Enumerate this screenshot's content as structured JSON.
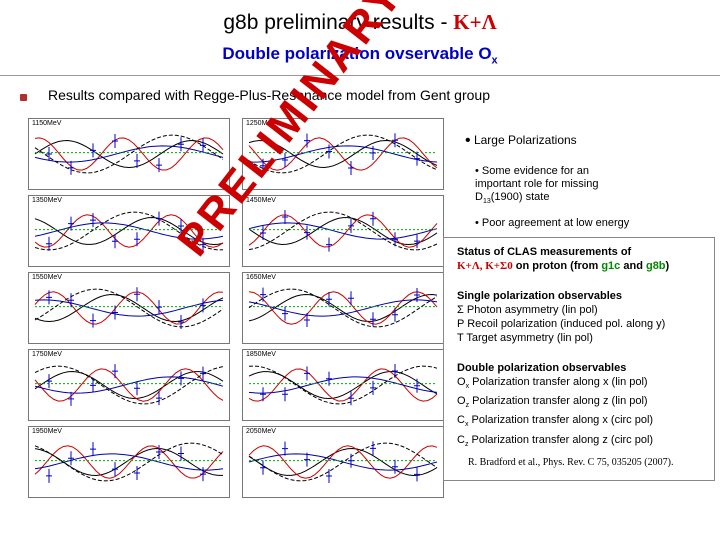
{
  "title": {
    "line1_prefix": "g8b preliminary results - ",
    "line1_reaction": "K+Λ",
    "line2_main": "Double polarization ovservable O",
    "line2_sub": "x"
  },
  "main_bullet": "Results compared with Regge-Plus-Resonance model from Gent group",
  "panels": [
    {
      "label": "1150MeV"
    },
    {
      "label": "1250MeV"
    },
    {
      "label": "1350MeV"
    },
    {
      "label": "1450MeV"
    },
    {
      "label": "1550MeV"
    },
    {
      "label": "1650MeV"
    },
    {
      "label": "1750MeV"
    },
    {
      "label": "1850MeV"
    },
    {
      "label": "1950MeV"
    },
    {
      "label": "2050MeV"
    }
  ],
  "watermark": "PRELIMINARY",
  "notes": {
    "n1": "Large Polarizations",
    "n2_a": "Some evidence for an important role for missing D",
    "n2_sub": "13",
    "n2_b": "(1900) state",
    "n3": "Poor agreement at low energy"
  },
  "status": {
    "heading1": "Status of CLAS measurements of",
    "heading2_reactions": "K+Λ, K+Σ0",
    "heading2_rest": " on proton (from ",
    "heading2_g1c": "g1c",
    "heading2_and": " and ",
    "heading2_g8b": "g8b",
    "heading2_end": ")",
    "single_title": "Single polarization observables",
    "single": [
      "Σ Photon asymmetry (lin pol)",
      "P Recoil polarization (induced pol. along y)",
      "T Target asymmetry (lin pol)"
    ],
    "double_title": "Double polarization observables",
    "double": [
      {
        "sym": "O",
        "sub": "x",
        "text": " Polarization transfer along x (lin pol)"
      },
      {
        "sym": "O",
        "sub": "z",
        "text": " Polarization transfer along z (lin pol)"
      },
      {
        "sym": "C",
        "sub": "x",
        "text": " Polarization transfer along x (circ pol)"
      },
      {
        "sym": "C",
        "sub": "z",
        "text": " Polarization transfer along z (circ pol)"
      }
    ],
    "reference": "R. Bradford et al., Phys. Rev. C 75, 035205 (2007)."
  }
}
